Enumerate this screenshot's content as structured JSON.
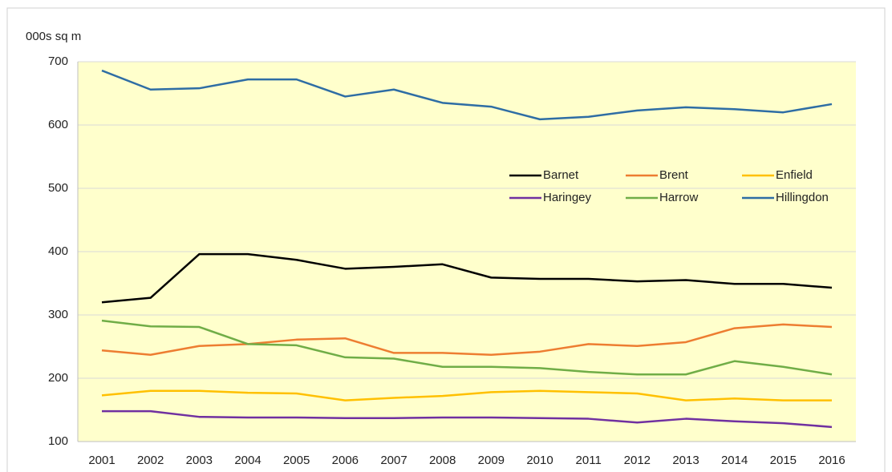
{
  "chart_data": {
    "type": "line",
    "y_label": "000s sq m",
    "categories": [
      "2001",
      "2002",
      "2003",
      "2004",
      "2005",
      "2006",
      "2007",
      "2008",
      "2009",
      "2010",
      "2011",
      "2012",
      "2013",
      "2014",
      "2015",
      "2016"
    ],
    "series": [
      {
        "name": "Barnet",
        "color": "#000000",
        "values": [
          320,
          327,
          396,
          396,
          387,
          373,
          376,
          380,
          359,
          357,
          357,
          353,
          355,
          349,
          349,
          343
        ]
      },
      {
        "name": "Brent",
        "color": "#ed7d31",
        "values": [
          244,
          237,
          251,
          254,
          261,
          263,
          240,
          240,
          237,
          242,
          254,
          251,
          257,
          279,
          285,
          281
        ]
      },
      {
        "name": "Enfield",
        "color": "#ffc000",
        "values": [
          173,
          180,
          180,
          177,
          176,
          165,
          169,
          172,
          178,
          180,
          178,
          176,
          165,
          168,
          165,
          165
        ]
      },
      {
        "name": "Haringey",
        "color": "#7030a0",
        "values": [
          148,
          148,
          139,
          138,
          138,
          137,
          137,
          138,
          138,
          137,
          136,
          130,
          136,
          132,
          129,
          123
        ]
      },
      {
        "name": "Harrow",
        "color": "#70ad47",
        "values": [
          291,
          282,
          281,
          254,
          252,
          233,
          231,
          218,
          218,
          216,
          210,
          206,
          206,
          227,
          218,
          206
        ]
      },
      {
        "name": "Hillingdon",
        "color": "#2e6da4",
        "values": [
          686,
          656,
          658,
          672,
          672,
          645,
          656,
          635,
          629,
          609,
          613,
          623,
          628,
          625,
          620,
          633
        ]
      }
    ],
    "ylim": [
      100,
      700
    ],
    "yticks": [
      100,
      200,
      300,
      400,
      500,
      600,
      700
    ],
    "grid": true,
    "legend": "right",
    "plot_background": "#ffffcc"
  }
}
